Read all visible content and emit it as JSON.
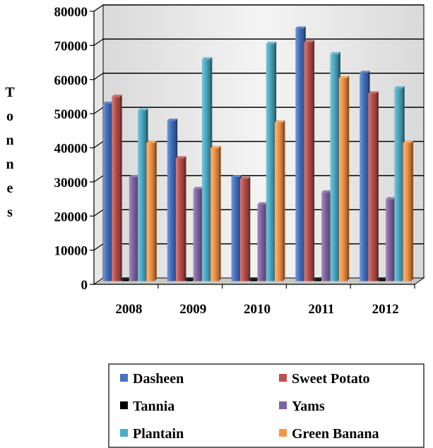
{
  "chart_data": {
    "type": "bar",
    "ylabel": "Tonnes",
    "ylim": [
      0,
      80000
    ],
    "yticks": [
      "0",
      "10000",
      "20000",
      "30000",
      "40000",
      "50000",
      "60000",
      "70000",
      "80000"
    ],
    "categories": [
      "2008",
      "2009",
      "2010",
      "2011",
      "2012"
    ],
    "grid": true,
    "legend_position": "bottom",
    "series": [
      {
        "name": "Dasheen",
        "color": "#4472c4",
        "values": [
          52000,
          47000,
          30500,
          74000,
          61000
        ]
      },
      {
        "name": "Sweet Potato",
        "color": "#c0504d",
        "values": [
          54000,
          36000,
          30000,
          70000,
          55000
        ]
      },
      {
        "name": "Tannia",
        "color": "#000000",
        "values": [
          500,
          500,
          500,
          500,
          500
        ]
      },
      {
        "name": "Yams",
        "color": "#8064a2",
        "values": [
          30500,
          27000,
          22500,
          26000,
          24000
        ]
      },
      {
        "name": "Plantain",
        "color": "#4bacc6",
        "values": [
          50000,
          65000,
          69500,
          66500,
          56500
        ]
      },
      {
        "name": "Green Banana",
        "color": "#f79646",
        "values": [
          40500,
          39000,
          46500,
          59500,
          40500
        ]
      }
    ]
  }
}
